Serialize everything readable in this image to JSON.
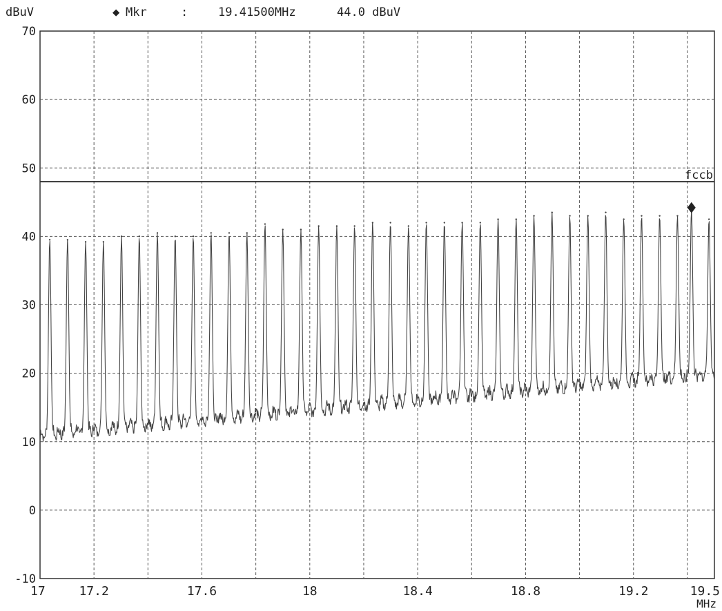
{
  "header": {
    "y_unit": "dBuV",
    "marker_symbol": "◆",
    "marker_label": "Mkr",
    "marker_sep": ":",
    "marker_freq": "19.41500MHz",
    "marker_level": "44.0 dBuV"
  },
  "chart_data": {
    "type": "line",
    "title": "",
    "xlabel": "MHz",
    "ylabel": "dBuV",
    "xlim": [
      17,
      19.5
    ],
    "ylim": [
      -10,
      70
    ],
    "x_ticks": [
      17,
      17.2,
      17.4,
      17.6,
      17.8,
      18,
      18.2,
      18.4,
      18.6,
      18.8,
      19,
      19.2,
      19.4,
      19.5
    ],
    "x_tick_labels": [
      "17",
      "17.2",
      "",
      "17.6",
      "",
      "18",
      "",
      "18.4",
      "",
      "18.8",
      "",
      "19.2",
      "",
      "19.5"
    ],
    "y_ticks": [
      -10,
      0,
      10,
      20,
      30,
      40,
      50,
      60,
      70
    ],
    "y_tick_labels": [
      "-10",
      "0",
      "10",
      "20",
      "30",
      "40",
      "50",
      "60",
      "70"
    ],
    "grid": true,
    "limit_line": {
      "name": "fccb",
      "y": 48
    },
    "marker": {
      "x": 19.415,
      "y": 44.0
    },
    "peak_spacing_mhz": 0.0665,
    "peaks": [
      {
        "x": 17.036,
        "y": 39.5
      },
      {
        "x": 17.102,
        "y": 39.5
      },
      {
        "x": 17.169,
        "y": 39.2
      },
      {
        "x": 17.235,
        "y": 39.2
      },
      {
        "x": 17.302,
        "y": 40.0
      },
      {
        "x": 17.368,
        "y": 40.0
      },
      {
        "x": 17.435,
        "y": 40.5
      },
      {
        "x": 17.501,
        "y": 40.0
      },
      {
        "x": 17.568,
        "y": 40.0
      },
      {
        "x": 17.634,
        "y": 40.5
      },
      {
        "x": 17.701,
        "y": 40.5
      },
      {
        "x": 17.767,
        "y": 40.5
      },
      {
        "x": 17.834,
        "y": 41.8
      },
      {
        "x": 17.9,
        "y": 41.0
      },
      {
        "x": 17.967,
        "y": 41.0
      },
      {
        "x": 18.033,
        "y": 41.5
      },
      {
        "x": 18.1,
        "y": 41.5
      },
      {
        "x": 18.166,
        "y": 41.5
      },
      {
        "x": 18.233,
        "y": 42.0
      },
      {
        "x": 18.299,
        "y": 42.0
      },
      {
        "x": 18.366,
        "y": 41.5
      },
      {
        "x": 18.432,
        "y": 42.0
      },
      {
        "x": 18.499,
        "y": 42.0
      },
      {
        "x": 18.565,
        "y": 42.0
      },
      {
        "x": 18.632,
        "y": 42.0
      },
      {
        "x": 18.698,
        "y": 42.5
      },
      {
        "x": 18.765,
        "y": 42.5
      },
      {
        "x": 18.831,
        "y": 43.0
      },
      {
        "x": 18.898,
        "y": 43.5
      },
      {
        "x": 18.964,
        "y": 43.0
      },
      {
        "x": 19.031,
        "y": 43.0
      },
      {
        "x": 19.097,
        "y": 43.5
      },
      {
        "x": 19.164,
        "y": 42.5
      },
      {
        "x": 19.23,
        "y": 43.0
      },
      {
        "x": 19.297,
        "y": 43.0
      },
      {
        "x": 19.363,
        "y": 43.0
      },
      {
        "x": 19.415,
        "y": 44.0
      },
      {
        "x": 19.48,
        "y": 42.5
      }
    ],
    "floor_start_db": 10,
    "floor_end_db": 19
  }
}
